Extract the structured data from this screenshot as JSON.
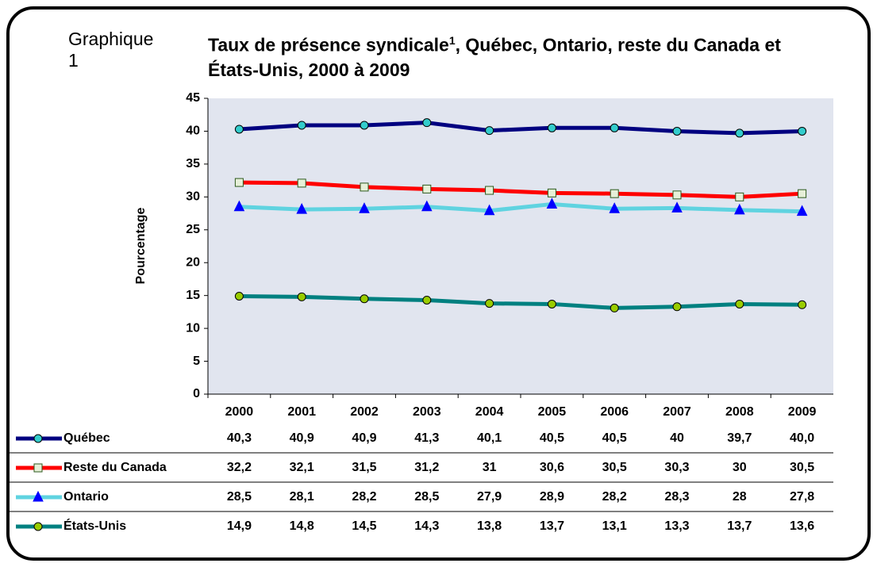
{
  "chart_data": {
    "type": "line",
    "label": "Graphique 1",
    "title": "Taux de présence syndicale",
    "title_note": "1",
    "title_rest": ", Québec, Ontario, reste du Canada et États-Unis, 2000 à 2009",
    "ylabel": "Pourcentage",
    "categories": [
      "2000",
      "2001",
      "2002",
      "2003",
      "2004",
      "2005",
      "2006",
      "2007",
      "2008",
      "2009"
    ],
    "ylim": [
      0,
      45
    ],
    "yticks": [
      0,
      5,
      10,
      15,
      20,
      25,
      30,
      35,
      40,
      45
    ],
    "grid": false,
    "plot_background": "#e1e5ef",
    "series": [
      {
        "name": "Québec",
        "color": "#000080",
        "marker": "circle",
        "marker_color": "#33cccc",
        "values": [
          40.3,
          40.9,
          40.9,
          41.3,
          40.1,
          40.5,
          40.5,
          40,
          39.7,
          40.0
        ],
        "value_labels": [
          "40,3",
          "40,9",
          "40,9",
          "41,3",
          "40,1",
          "40,5",
          "40,5",
          "40",
          "39,7",
          "40,0"
        ]
      },
      {
        "name": "Reste du Canada",
        "color": "#ff0000",
        "marker": "square",
        "marker_color": "#e6f0d8",
        "values": [
          32.2,
          32.1,
          31.5,
          31.2,
          31,
          30.6,
          30.5,
          30.3,
          30,
          30.5
        ],
        "value_labels": [
          "32,2",
          "32,1",
          "31,5",
          "31,2",
          "31",
          "30,6",
          "30,5",
          "30,3",
          "30",
          "30,5"
        ]
      },
      {
        "name": "Ontario",
        "color": "#5fd3e0",
        "marker": "triangle",
        "marker_color": "#0000ff",
        "values": [
          28.5,
          28.1,
          28.2,
          28.5,
          27.9,
          28.9,
          28.2,
          28.3,
          28,
          27.8
        ],
        "value_labels": [
          "28,5",
          "28,1",
          "28,2",
          "28,5",
          "27,9",
          "28,9",
          "28,2",
          "28,3",
          "28",
          "27,8"
        ]
      },
      {
        "name": "États-Unis",
        "color": "#008080",
        "marker": "circle",
        "marker_color": "#99cc00",
        "values": [
          14.9,
          14.8,
          14.5,
          14.3,
          13.8,
          13.7,
          13.1,
          13.3,
          13.7,
          13.6
        ],
        "value_labels": [
          "14,9",
          "14,8",
          "14,5",
          "14,3",
          "13,8",
          "13,7",
          "13,1",
          "13,3",
          "13,7",
          "13,6"
        ]
      }
    ]
  }
}
